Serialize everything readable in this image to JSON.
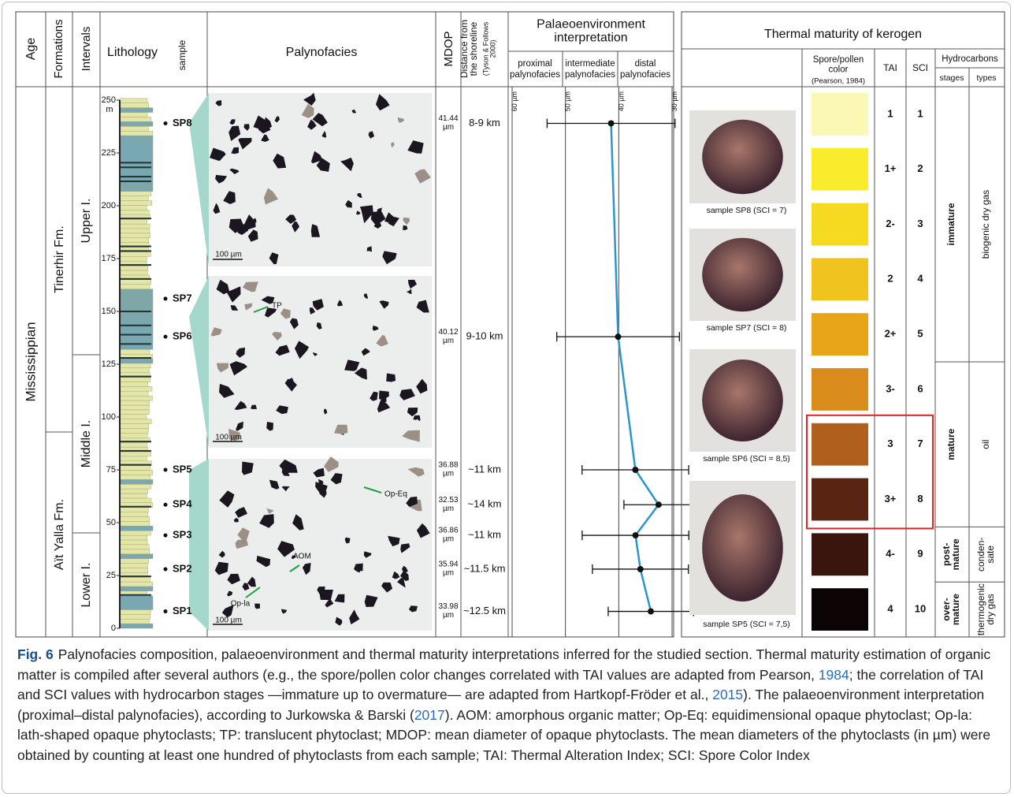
{
  "header": {
    "age": "Age",
    "formations": "Formations",
    "intervals": "Intervals",
    "lithology": "Lithology",
    "sample": "sample",
    "palynofacies": "Palynofacies",
    "mdop": "MDOP",
    "distance": [
      "Distance from",
      "the shoreline"
    ],
    "distance_ref": [
      "(Tyson & Follows",
      "2000)"
    ],
    "palaeo_title": [
      "Palaeoenvironment",
      "interpretation"
    ],
    "proximal": [
      "proximal",
      "palynofacies"
    ],
    "intermediate": [
      "intermediate",
      "palynofacies"
    ],
    "distal": [
      "distal",
      "palynofacies"
    ]
  },
  "age": "Mississippian",
  "formations": [
    "Tinerhir Fm.",
    "Aït Yalla Fm."
  ],
  "intervals": [
    "Upper I.",
    "Middle I.",
    "Lower I."
  ],
  "depth_axis": {
    "lim": [
      0,
      250
    ],
    "ticks": [
      0,
      25,
      50,
      75,
      100,
      125,
      150,
      175,
      200,
      225,
      250
    ],
    "unit": "m"
  },
  "mdop_unit": "µm",
  "mdop_axis": {
    "lim": [
      60,
      30
    ],
    "ticks": [
      60,
      50,
      40,
      30
    ]
  },
  "samples": [
    {
      "name": "SP8",
      "depth": 239,
      "mdop": 41.44,
      "error": 12,
      "distance": "8-9 km"
    },
    {
      "name": "SP7",
      "depth": 156,
      "mdop": null,
      "error": null,
      "distance": null
    },
    {
      "name": "SP6",
      "depth": 138,
      "mdop": 40.12,
      "error": 11.5,
      "distance": "9-10 km"
    },
    {
      "name": "SP5",
      "depth": 75,
      "mdop": 36.88,
      "error": 10,
      "distance": "~11 km"
    },
    {
      "name": "SP4",
      "depth": 58.5,
      "mdop": 32.53,
      "error": 6.5,
      "distance": "~14 km"
    },
    {
      "name": "SP3",
      "depth": 44,
      "mdop": 36.86,
      "error": 10,
      "distance": "~11 km"
    },
    {
      "name": "SP2",
      "depth": 28,
      "mdop": 35.94,
      "error": 9,
      "distance": "~11.5 km"
    },
    {
      "name": "SP1",
      "depth": 8,
      "mdop": 33.98,
      "error": 8,
      "distance": "~12.5 km"
    }
  ],
  "photo_labels": [
    [
      "100 µm"
    ],
    [
      "TP",
      "100 µm"
    ],
    [
      "Op-Eq",
      "AOM",
      "Op-la",
      "100 µm"
    ]
  ],
  "thermal": {
    "title": "Thermal maturity of kerogen",
    "spore_color": [
      "Spore/pollen",
      "color"
    ],
    "spore_ref": "(Pearson, 1984)",
    "tai": "TAI",
    "sci": "SCI",
    "hydrocarbons": "Hydrocarbons",
    "stages": "stages",
    "types": "types",
    "rows": [
      {
        "tai": "1",
        "sci": 1,
        "color": "#fbf7b5"
      },
      {
        "tai": "1+",
        "sci": 2,
        "color": "#f8ec2c"
      },
      {
        "tai": "2-",
        "sci": 3,
        "color": "#f6da22"
      },
      {
        "tai": "2",
        "sci": 4,
        "color": "#f1c31f"
      },
      {
        "tai": "2+",
        "sci": 5,
        "color": "#e9a51a"
      },
      {
        "tai": "3-",
        "sci": 6,
        "color": "#d98b1b"
      },
      {
        "tai": "3",
        "sci": 7,
        "color": "#b0601c"
      },
      {
        "tai": "3+",
        "sci": 8,
        "color": "#5a2412"
      },
      {
        "tai": "4-",
        "sci": 9,
        "color": "#3a150d"
      },
      {
        "tai": "4",
        "sci": 10,
        "color": "#0c0404"
      }
    ],
    "groups": [
      {
        "stage": [
          "immature"
        ],
        "type": [
          "biogenic dry gas"
        ]
      },
      {
        "stage": [
          "mature"
        ],
        "type": [
          "oil"
        ]
      },
      {
        "stage": [
          "post-",
          "mature"
        ],
        "type": [
          "conden-",
          "sate"
        ]
      },
      {
        "stage": [
          "over-",
          "mature"
        ],
        "type": [
          "thermogenic",
          "dry gas"
        ]
      }
    ],
    "photos": [
      "sample SP8 (SCI = 7)",
      "sample SP7 (SCI = 8)",
      "sample SP6 (SCI = 8,5)",
      "sample SP5 (SCI = 7,5)"
    ],
    "highlight_color": "#d9262c"
  },
  "caption": {
    "label": "Fig. 6",
    "segments": [
      {
        "text": "Palynofacies composition, palaeoenvironment and thermal maturity interpretations inferred for the studied section. Thermal maturity estimation of organic matter is compiled after several authors (e.g., the spore/pollen color changes correlated with TAI values are adapted from Pearson, "
      },
      {
        "text": "1984",
        "link": true
      },
      {
        "text": "; the correlation of TAI and SCI values with hydrocarbon stages —immature up to overmature— are adapted from Hartkopf-Fröder et al., "
      },
      {
        "text": "2015",
        "link": true
      },
      {
        "text": "). The palaeoenvironment interpretation (proximal–distal palynofacies), according to Jurkowska & Barski ("
      },
      {
        "text": "2017",
        "link": true
      },
      {
        "text": "). AOM: amorphous organic matter; Op-Eq: equidimensional opaque phytoclast; Op-la: lath-shaped opaque phytoclasts; TP: translucent phytoclast; MDOP: mean diameter of opaque phytoclasts. The mean diameters of the phytoclasts (in µm) were obtained by counting at least one hundred of phytoclasts from each sample; TAI: Thermal Alteration Index; SCI: Spore Color Index"
      }
    ]
  }
}
